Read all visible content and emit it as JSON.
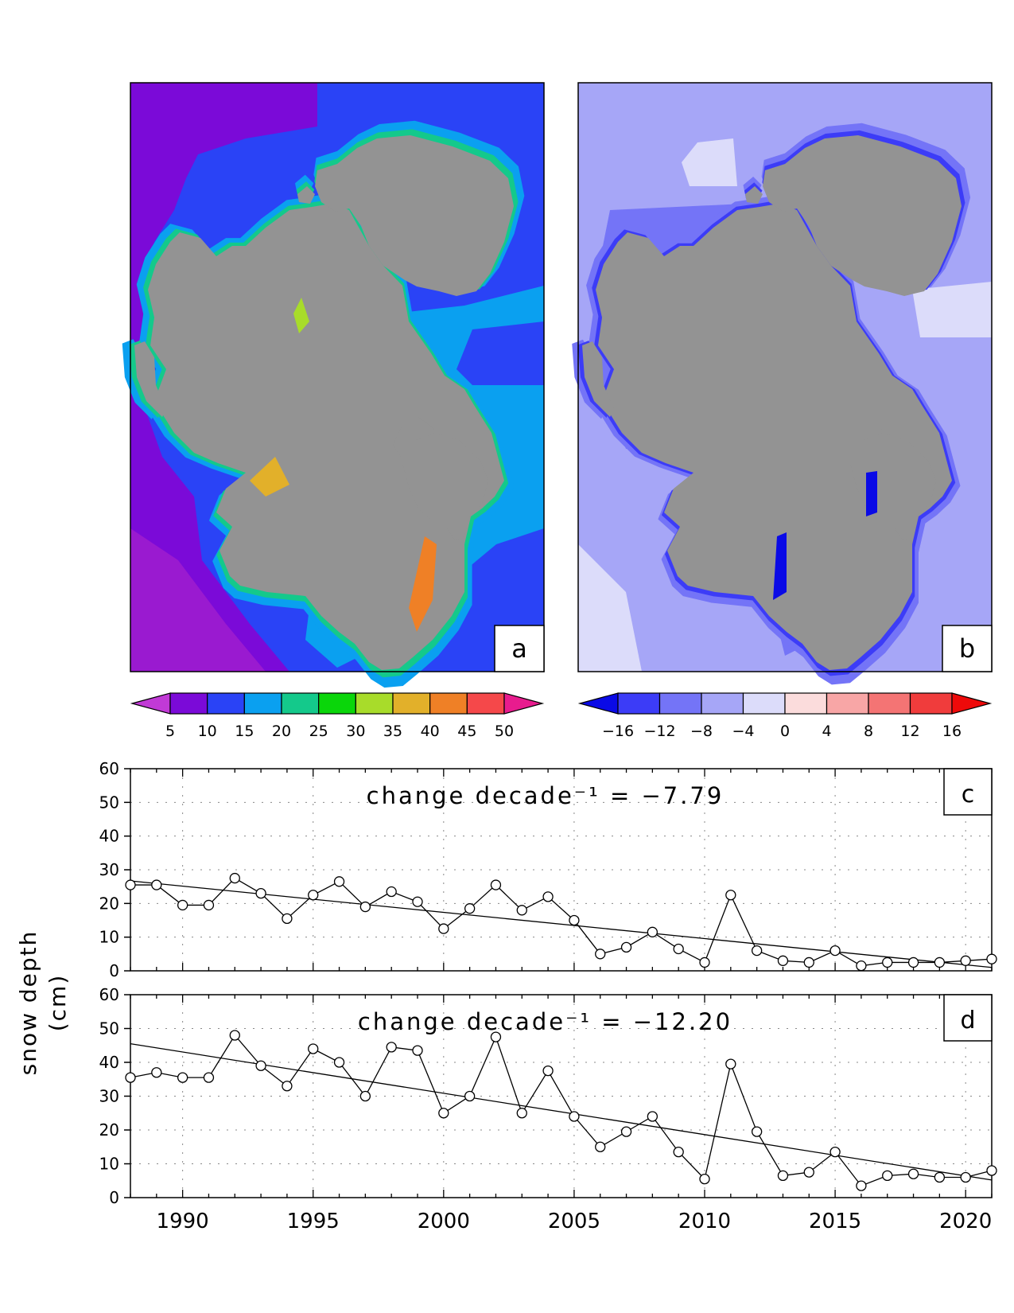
{
  "chart_data": [
    {
      "type": "heatmap",
      "panel_label": "a",
      "colorbar": {
        "tick_labels": [
          "5",
          "10",
          "15",
          "20",
          "25",
          "30",
          "35",
          "40",
          "45",
          "50"
        ],
        "colors": [
          "#c13ad6",
          "#7b0ad8",
          "#2a43f6",
          "#0aa0f0",
          "#14c98b",
          "#0ad60a",
          "#a8dc2a",
          "#e2b02a",
          "#ef8026",
          "#f5484a",
          "#e81c8e"
        ],
        "extends": "both"
      }
    },
    {
      "type": "heatmap",
      "panel_label": "b",
      "colorbar": {
        "tick_labels": [
          "−16",
          "−12",
          "−8",
          "−4",
          "0",
          "4",
          "8",
          "12",
          "16"
        ],
        "colors": [
          "#0a0ae6",
          "#3c3cf7",
          "#7474f7",
          "#a6a6f7",
          "#dcdcfa",
          "#fbdcdc",
          "#f8a6a6",
          "#f47474",
          "#f03c3c",
          "#ee0a0a"
        ],
        "extends": "both"
      }
    },
    {
      "type": "line",
      "panel_label": "c",
      "annotation": "change decade⁻¹ = −7.79",
      "x": [
        1988,
        1989,
        1990,
        1991,
        1992,
        1993,
        1994,
        1995,
        1996,
        1997,
        1998,
        1999,
        2000,
        2001,
        2002,
        2003,
        2004,
        2005,
        2006,
        2007,
        2008,
        2009,
        2010,
        2011,
        2012,
        2013,
        2014,
        2015,
        2016,
        2017,
        2018,
        2019,
        2020,
        2021
      ],
      "series": [
        {
          "values": [
            25.5,
            25.5,
            19.5,
            19.5,
            27.5,
            23,
            15.5,
            22.5,
            26.5,
            19,
            23.5,
            20.5,
            12.5,
            18.5,
            25.5,
            18,
            22,
            15,
            5,
            7,
            11.5,
            6.5,
            2.5,
            22.5,
            6,
            3,
            2.5,
            6,
            1.5,
            2.5,
            2.5,
            2.5,
            3,
            3.5
          ]
        }
      ],
      "trend": {
        "x": [
          1988,
          2021
        ],
        "y": [
          26.7,
          1.0
        ]
      },
      "xlim": [
        1988,
        2021
      ],
      "ylim": [
        0,
        60
      ],
      "yticks": [
        0,
        10,
        20,
        30,
        40,
        50,
        60
      ],
      "xticks": [
        1990,
        1995,
        2000,
        2005,
        2010,
        2015,
        2020
      ],
      "grid": true
    },
    {
      "type": "line",
      "panel_label": "d",
      "annotation": "change decade⁻¹ = −12.20",
      "x": [
        1988,
        1989,
        1990,
        1991,
        1992,
        1993,
        1994,
        1995,
        1996,
        1997,
        1998,
        1999,
        2000,
        2001,
        2002,
        2003,
        2004,
        2005,
        2006,
        2007,
        2008,
        2009,
        2010,
        2011,
        2012,
        2013,
        2014,
        2015,
        2016,
        2017,
        2018,
        2019,
        2020,
        2021
      ],
      "series": [
        {
          "values": [
            35.5,
            37,
            35.5,
            35.5,
            48,
            39,
            33,
            44,
            40,
            30,
            44.5,
            43.5,
            25,
            30,
            47.5,
            25,
            37.5,
            24,
            15,
            19.5,
            24,
            13.5,
            5.5,
            39.5,
            19.5,
            6.5,
            7.5,
            13.5,
            3.5,
            6.5,
            7,
            6,
            6,
            8
          ]
        }
      ],
      "trend": {
        "x": [
          1988,
          2021
        ],
        "y": [
          45.5,
          5.2
        ]
      },
      "xlim": [
        1988,
        2021
      ],
      "ylim": [
        0,
        60
      ],
      "yticks": [
        0,
        10,
        20,
        30,
        40,
        50,
        60
      ],
      "xticks": [
        1990,
        1995,
        2000,
        2005,
        2010,
        2015,
        2020
      ],
      "grid": true
    }
  ],
  "ylabel_line1": "snow depth",
  "ylabel_line2": "(cm)",
  "land_color": "#939393"
}
